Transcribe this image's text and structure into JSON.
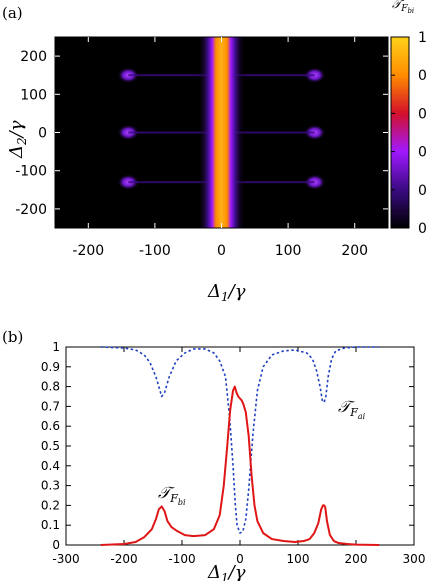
{
  "chart_data": [
    {
      "type": "heatmap",
      "panel_label": "(a)",
      "colorbar_title": "𝒯",
      "colorbar_title_sub": "F",
      "colorbar_title_subsub": "bi",
      "xlabel": "Δ",
      "xlabel_sub": "1",
      "xlabel_den": "/γ",
      "ylabel": "Δ",
      "ylabel_sub": "2",
      "ylabel_den": "/γ",
      "xlim": [
        -250,
        250
      ],
      "ylim": [
        -250,
        250
      ],
      "xticks": [
        -200,
        -100,
        0,
        100,
        200
      ],
      "yticks": [
        200,
        100,
        0,
        -100,
        -200
      ],
      "colorbar_ticks": [
        "1",
        "0",
        "0",
        "0",
        "0",
        "0"
      ],
      "colorbar_colors": [
        "#000000",
        "#3a0a82",
        "#a018ff",
        "#d4102a",
        "#ff8c00",
        "#ffd21a"
      ],
      "peak_band_x": [
        -20,
        20
      ],
      "side_band_x": [
        -35,
        35
      ],
      "spot_x": [
        -140,
        140
      ],
      "spot_y": [
        150,
        0,
        -130
      ]
    },
    {
      "type": "line",
      "panel_label": "(b)",
      "xlabel": "Δ",
      "xlabel_sub": "1",
      "xlabel_den": "/γ",
      "xlim": [
        -300,
        300
      ],
      "ylim": [
        0,
        1
      ],
      "xticks": [
        -300,
        -200,
        -100,
        0,
        100,
        200,
        300
      ],
      "yticks": [
        0,
        0.1,
        0.2,
        0.3,
        0.4,
        0.5,
        0.6,
        0.7,
        0.8,
        0.9,
        1
      ],
      "ytick_labels": [
        "0",
        "0.1",
        "0.2",
        "0.3",
        "0.4",
        "0.5",
        "0.6",
        "0.7",
        "0.8",
        "0.9",
        "1"
      ],
      "series": [
        {
          "label_main": "𝒯",
          "label_sub": "F",
          "label_subsub": "ai",
          "color": "#1f3fbf",
          "style": "dotted",
          "x": [
            -240,
            -200,
            -180,
            -165,
            -155,
            -145,
            -138,
            -135,
            -130,
            -122,
            -110,
            -95,
            -80,
            -60,
            -45,
            -35,
            -25,
            -18,
            -12,
            -8,
            -5,
            0,
            5,
            10,
            15,
            22,
            30,
            40,
            55,
            75,
            95,
            115,
            125,
            132,
            138,
            142,
            145,
            148,
            152,
            158,
            165,
            180,
            200,
            240
          ],
          "y": [
            1.0,
            0.995,
            0.985,
            0.96,
            0.92,
            0.85,
            0.78,
            0.75,
            0.77,
            0.85,
            0.93,
            0.97,
            0.99,
            0.99,
            0.97,
            0.93,
            0.85,
            0.65,
            0.4,
            0.2,
            0.1,
            0.06,
            0.07,
            0.13,
            0.28,
            0.55,
            0.78,
            0.9,
            0.96,
            0.98,
            0.985,
            0.97,
            0.94,
            0.88,
            0.8,
            0.73,
            0.72,
            0.75,
            0.85,
            0.94,
            0.98,
            0.995,
            1.0,
            1.0
          ]
        },
        {
          "label_main": "𝒯",
          "label_sub": "F",
          "label_subsub": "bi",
          "color": "#e01616",
          "style": "solid",
          "x": [
            -240,
            -200,
            -180,
            -165,
            -152,
            -145,
            -140,
            -135,
            -130,
            -125,
            -118,
            -108,
            -95,
            -80,
            -60,
            -45,
            -35,
            -28,
            -22,
            -17,
            -12,
            -9,
            -6,
            -3,
            0,
            3,
            6,
            10,
            15,
            20,
            25,
            30,
            40,
            55,
            75,
            95,
            110,
            120,
            128,
            135,
            140,
            143,
            145,
            147,
            150,
            155,
            162,
            170,
            185,
            200,
            240
          ],
          "y": [
            0.0,
            0.005,
            0.015,
            0.04,
            0.08,
            0.13,
            0.18,
            0.195,
            0.17,
            0.12,
            0.09,
            0.07,
            0.05,
            0.045,
            0.05,
            0.08,
            0.15,
            0.3,
            0.5,
            0.68,
            0.78,
            0.8,
            0.77,
            0.75,
            0.74,
            0.73,
            0.71,
            0.67,
            0.55,
            0.35,
            0.2,
            0.12,
            0.06,
            0.03,
            0.02,
            0.015,
            0.02,
            0.03,
            0.06,
            0.11,
            0.18,
            0.2,
            0.2,
            0.19,
            0.12,
            0.05,
            0.02,
            0.01,
            0.005,
            0.002,
            0.0
          ]
        }
      ]
    }
  ]
}
